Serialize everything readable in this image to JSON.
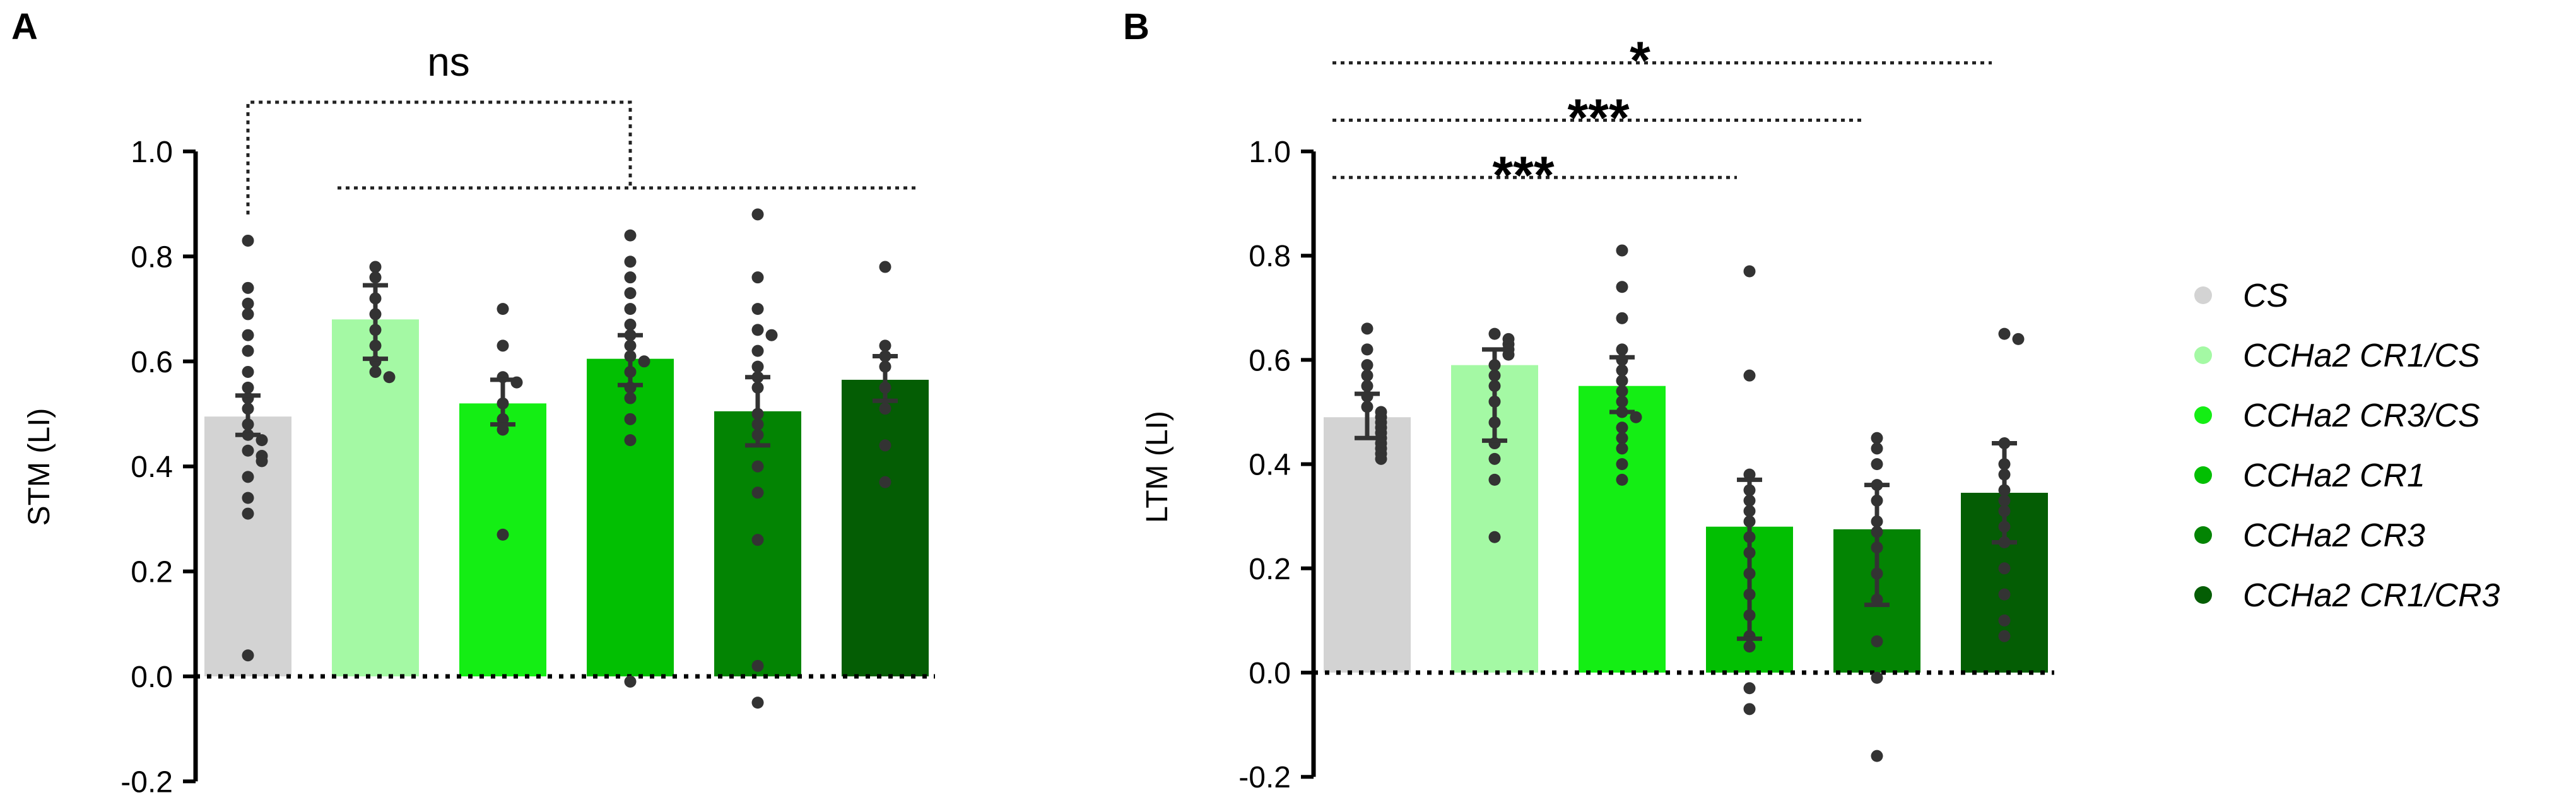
{
  "colors": {
    "axis": "#000000",
    "dot": "#333333",
    "errorbar": "#333333",
    "bracket": "#222222",
    "bars": [
      "#d3d3d3",
      "#a4f9a4",
      "#14ee14",
      "#02bf02",
      "#038403",
      "#045d04"
    ]
  },
  "legend": {
    "placement": "right",
    "entries": [
      {
        "label": "CS",
        "color_index": 0
      },
      {
        "label": "CCHa2 CR1/CS",
        "color_index": 1
      },
      {
        "label": "CCHa2 CR3/CS",
        "color_index": 2
      },
      {
        "label": "CCHa2 CR1",
        "color_index": 3
      },
      {
        "label": "CCHa2 CR3",
        "color_index": 4
      },
      {
        "label": "CCHa2 CR1/CR3",
        "color_index": 5
      }
    ]
  },
  "chart_data": [
    {
      "panel_label": "A",
      "type": "bar",
      "ylabel": "STM (LI)",
      "xlabel": "",
      "ylim": [
        -0.2,
        1.0
      ],
      "yticks": [
        -0.2,
        0.0,
        0.2,
        0.4,
        0.6,
        0.8,
        1.0
      ],
      "ytick_labels": [
        "-0.2",
        "0.0",
        "0.2",
        "0.4",
        "0.6",
        "0.8",
        "1.0"
      ],
      "categories": [
        "CS",
        "CCHa2 CR1/CS",
        "CCHa2 CR3/CS",
        "CCHa2 CR1",
        "CCHa2 CR3",
        "CCHa2 CR1/CR3"
      ],
      "means": [
        0.495,
        0.68,
        0.52,
        0.605,
        0.505,
        0.565
      ],
      "error": [
        [
          0.46,
          0.535
        ],
        [
          0.605,
          0.745
        ],
        [
          0.48,
          0.565
        ],
        [
          0.555,
          0.65
        ],
        [
          0.44,
          0.57
        ],
        [
          0.525,
          0.61
        ]
      ],
      "points": [
        [
          0.83,
          0.74,
          0.71,
          0.69,
          0.65,
          0.62,
          0.58,
          0.55,
          0.53,
          0.51,
          0.48,
          0.46,
          0.45,
          0.43,
          0.42,
          0.41,
          0.38,
          0.34,
          0.31,
          0.04
        ],
        [
          0.78,
          0.76,
          0.72,
          0.69,
          0.66,
          0.63,
          0.6,
          0.58,
          0.57
        ],
        [
          0.7,
          0.63,
          0.57,
          0.56,
          0.52,
          0.49,
          0.47,
          0.27
        ],
        [
          0.84,
          0.79,
          0.76,
          0.73,
          0.7,
          0.67,
          0.65,
          0.63,
          0.61,
          0.6,
          0.58,
          0.55,
          0.53,
          0.49,
          0.45,
          -0.01
        ],
        [
          0.88,
          0.76,
          0.7,
          0.66,
          0.65,
          0.62,
          0.59,
          0.57,
          0.55,
          0.5,
          0.48,
          0.46,
          0.4,
          0.35,
          0.26,
          0.02,
          -0.05
        ],
        [
          0.78,
          0.63,
          0.61,
          0.59,
          0.55,
          0.51,
          0.44,
          0.37
        ]
      ],
      "comparisons": [
        {
          "label": "ns",
          "from": 0,
          "to": "1-5",
          "y": 0.94,
          "style": "dotted"
        }
      ],
      "zero_line": "dotted"
    },
    {
      "panel_label": "B",
      "type": "bar",
      "ylabel": "LTM (LI)",
      "xlabel": "",
      "ylim": [
        -0.2,
        1.0
      ],
      "yticks": [
        -0.2,
        0.0,
        0.2,
        0.4,
        0.6,
        0.8,
        1.0
      ],
      "ytick_labels": [
        "-0.2",
        "0.0",
        "0.2",
        "0.4",
        "0.6",
        "0.8",
        "1.0"
      ],
      "categories": [
        "CS",
        "CCHa2 CR1/CS",
        "CCHa2 CR3/CS",
        "CCHa2 CR1",
        "CCHa2 CR3",
        "CCHa2 CR1/CR3"
      ],
      "means": [
        0.49,
        0.59,
        0.55,
        0.28,
        0.275,
        0.345
      ],
      "error": [
        [
          0.45,
          0.535
        ],
        [
          0.445,
          0.62
        ],
        [
          0.5,
          0.605
        ],
        [
          0.065,
          0.37
        ],
        [
          0.13,
          0.36
        ],
        [
          0.25,
          0.44
        ]
      ],
      "points": [
        [
          0.66,
          0.62,
          0.59,
          0.57,
          0.55,
          0.53,
          0.51,
          0.5,
          0.49,
          0.48,
          0.47,
          0.46,
          0.45,
          0.44,
          0.43,
          0.42,
          0.41
        ],
        [
          0.65,
          0.64,
          0.63,
          0.62,
          0.61,
          0.59,
          0.57,
          0.55,
          0.52,
          0.48,
          0.44,
          0.41,
          0.37,
          0.26
        ],
        [
          0.81,
          0.74,
          0.68,
          0.62,
          0.6,
          0.58,
          0.56,
          0.54,
          0.52,
          0.5,
          0.49,
          0.47,
          0.45,
          0.43,
          0.4,
          0.37
        ],
        [
          0.77,
          0.57,
          0.38,
          0.35,
          0.33,
          0.31,
          0.29,
          0.26,
          0.23,
          0.19,
          0.15,
          0.11,
          0.07,
          0.05,
          -0.03,
          -0.07
        ],
        [
          0.45,
          0.43,
          0.4,
          0.36,
          0.33,
          0.29,
          0.27,
          0.24,
          0.19,
          0.14,
          0.06,
          -0.01,
          -0.16
        ],
        [
          0.65,
          0.64,
          0.44,
          0.4,
          0.38,
          0.35,
          0.33,
          0.31,
          0.28,
          0.25,
          0.2,
          0.15,
          0.1,
          0.07
        ]
      ],
      "comparisons": [
        {
          "label": "*",
          "from": 0,
          "to": 5,
          "y": 1.17
        },
        {
          "label": "***",
          "from": 0,
          "to": 4,
          "y": 1.06
        },
        {
          "label": "***",
          "from": 0,
          "to": 3,
          "y": 0.95
        }
      ],
      "zero_line": "dotted"
    }
  ]
}
